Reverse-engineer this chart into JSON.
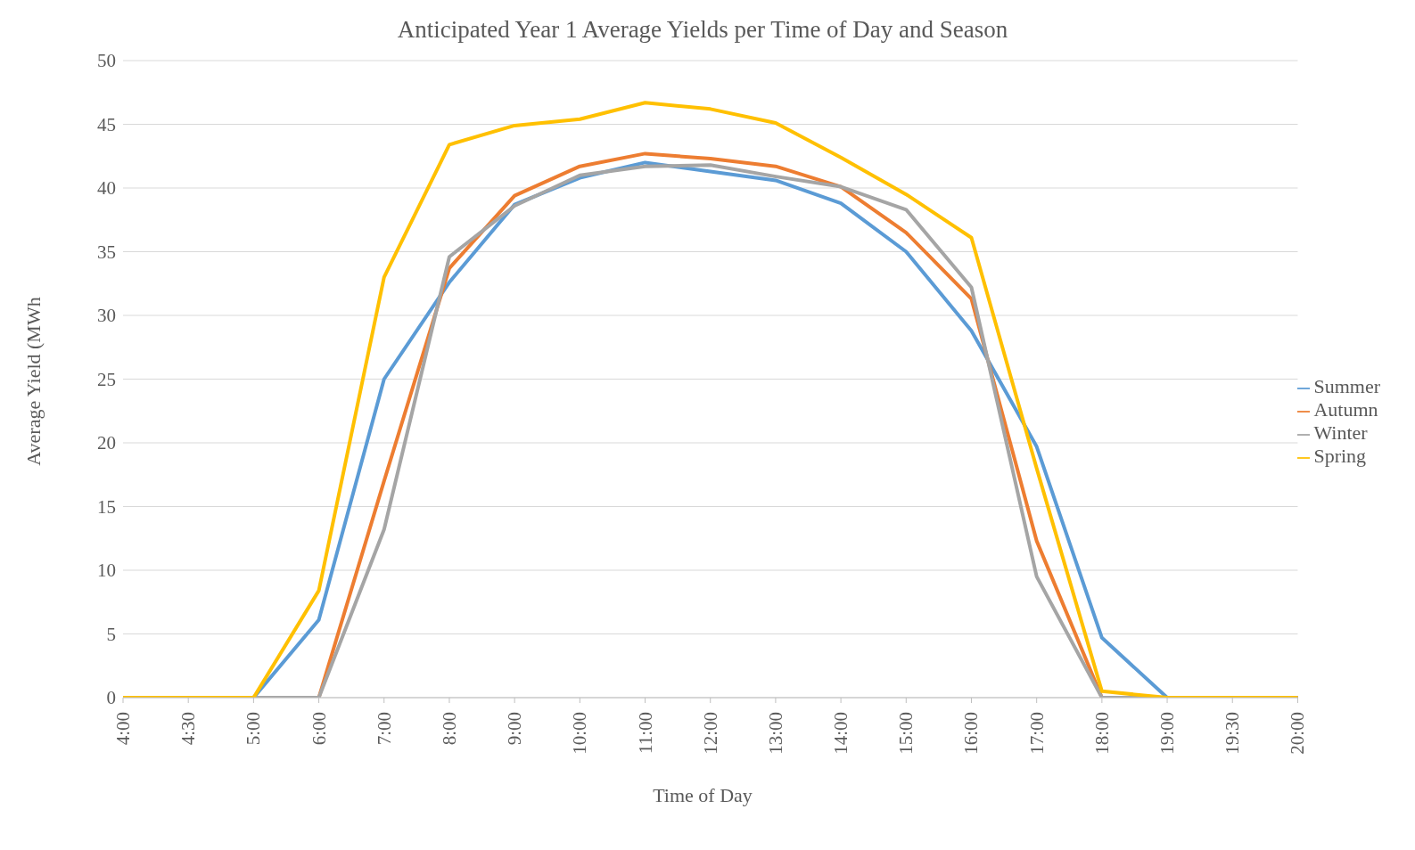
{
  "chart_data": {
    "type": "line",
    "title": "Anticipated Year 1 Average Yields per Time of Day and Season",
    "xlabel": "Time of Day",
    "ylabel": "Average Yield (MWh",
    "categories": [
      "4:00",
      "4:30",
      "5:00",
      "6:00",
      "7:00",
      "8:00",
      "9:00",
      "10:00",
      "11:00",
      "12:00",
      "13:00",
      "14:00",
      "15:00",
      "16:00",
      "17:00",
      "18:00",
      "19:00",
      "19:30",
      "20:00"
    ],
    "series": [
      {
        "name": "Summer",
        "color": "#5b9bd5",
        "values": [
          null,
          null,
          0,
          6.1,
          25,
          32.6,
          38.7,
          40.8,
          42,
          41.3,
          40.6,
          38.8,
          35,
          28.8,
          19.7,
          4.7,
          0,
          0,
          0
        ]
      },
      {
        "name": "Autumn",
        "color": "#ed7d31",
        "values": [
          null,
          null,
          0,
          0,
          17,
          33.7,
          39.4,
          41.7,
          42.7,
          42.3,
          41.7,
          40.1,
          36.5,
          31.3,
          12.3,
          0,
          0,
          0,
          0
        ]
      },
      {
        "name": "Winter",
        "color": "#a5a5a5",
        "values": [
          null,
          null,
          0,
          0,
          13.2,
          34.6,
          38.6,
          41,
          41.7,
          41.8,
          40.9,
          40.1,
          38.3,
          32.2,
          9.5,
          0,
          0,
          0,
          0
        ]
      },
      {
        "name": "Spring",
        "color": "#ffc000",
        "values": [
          0,
          0,
          0,
          8.4,
          33,
          43.4,
          44.9,
          45.4,
          46.7,
          46.2,
          45.1,
          42.4,
          39.5,
          36.1,
          18,
          0.5,
          0,
          0,
          0
        ]
      }
    ],
    "ylim": [
      0,
      50
    ],
    "yticks": [
      0,
      5,
      10,
      15,
      20,
      25,
      30,
      35,
      40,
      45,
      50
    ],
    "grid": "y",
    "legend": "right",
    "marker": "none",
    "line_style": "solid"
  }
}
